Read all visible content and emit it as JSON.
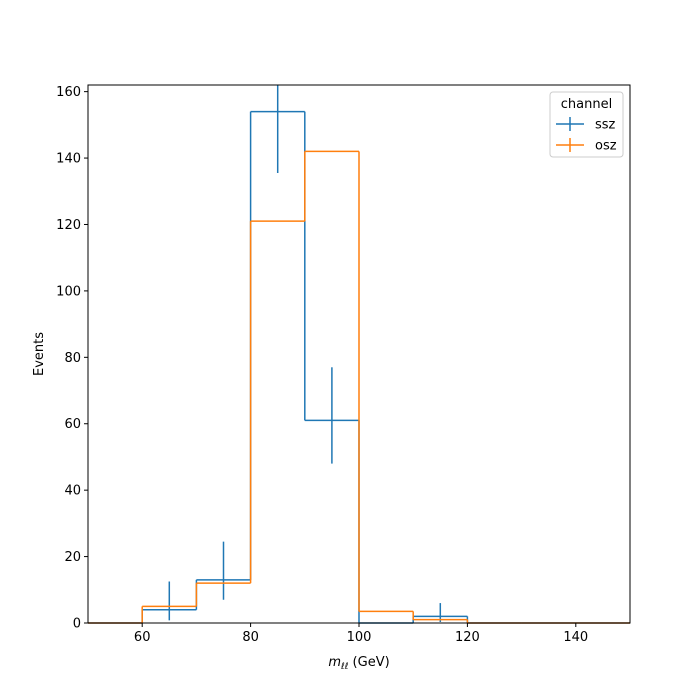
{
  "chart_data": {
    "type": "histogram-step",
    "xlabel_main": "m",
    "xlabel_sub": "ℓℓ",
    "xlabel_unit": " (GeV)",
    "ylabel": "Events",
    "xlim": [
      50,
      150
    ],
    "ylim": [
      0,
      162
    ],
    "xticks": [
      60,
      80,
      100,
      120,
      140
    ],
    "yticks": [
      0,
      20,
      40,
      60,
      80,
      100,
      120,
      140,
      160
    ],
    "bin_edges": [
      50,
      60,
      70,
      80,
      90,
      100,
      110,
      120,
      130,
      140,
      150
    ],
    "legend": {
      "title": "channel",
      "position": "top-right"
    },
    "series": [
      {
        "name": "ssz",
        "color": "#1f77b4",
        "values": [
          0,
          4,
          13,
          154,
          61,
          0,
          2,
          0,
          0,
          0
        ],
        "errors": [
          {
            "x": 65,
            "y": 4,
            "low": 0.8,
            "high": 12.5
          },
          {
            "x": 75,
            "y": 13,
            "low": 7,
            "high": 24.5
          },
          {
            "x": 85,
            "y": 154,
            "low": 135.5,
            "high": 162
          },
          {
            "x": 95,
            "y": 61,
            "low": 48,
            "high": 77
          },
          {
            "x": 115,
            "y": 2,
            "low": 0.3,
            "high": 6
          }
        ]
      },
      {
        "name": "osz",
        "color": "#ff7f0e",
        "values": [
          0,
          5,
          12,
          121,
          142,
          3.5,
          1,
          0,
          0,
          0
        ],
        "errors": []
      }
    ]
  }
}
